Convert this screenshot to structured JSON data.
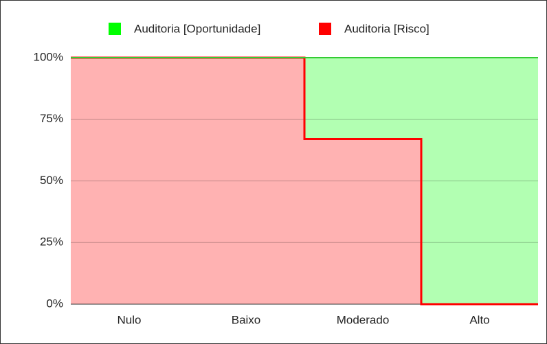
{
  "chart_data": {
    "type": "stepped_area_stacked",
    "categories": [
      "Nulo",
      "Baixo",
      "Moderado",
      "Alto"
    ],
    "series": [
      {
        "name": "Auditoria [Risco]",
        "color": "#ff0000",
        "values": [
          100,
          100,
          67,
          0
        ]
      },
      {
        "name": "Auditoria [Oportunidade]",
        "color": "#00ff00",
        "values": [
          0,
          0,
          33,
          100
        ]
      }
    ],
    "legend_order": [
      1,
      0
    ],
    "ylim": [
      0,
      100
    ],
    "yticks": [
      {
        "value": 0,
        "label": "0%"
      },
      {
        "value": 25,
        "label": "25%"
      },
      {
        "value": 50,
        "label": "50%"
      },
      {
        "value": 75,
        "label": "75%"
      },
      {
        "value": 100,
        "label": "100%"
      }
    ],
    "grid": true,
    "legend": "top"
  }
}
